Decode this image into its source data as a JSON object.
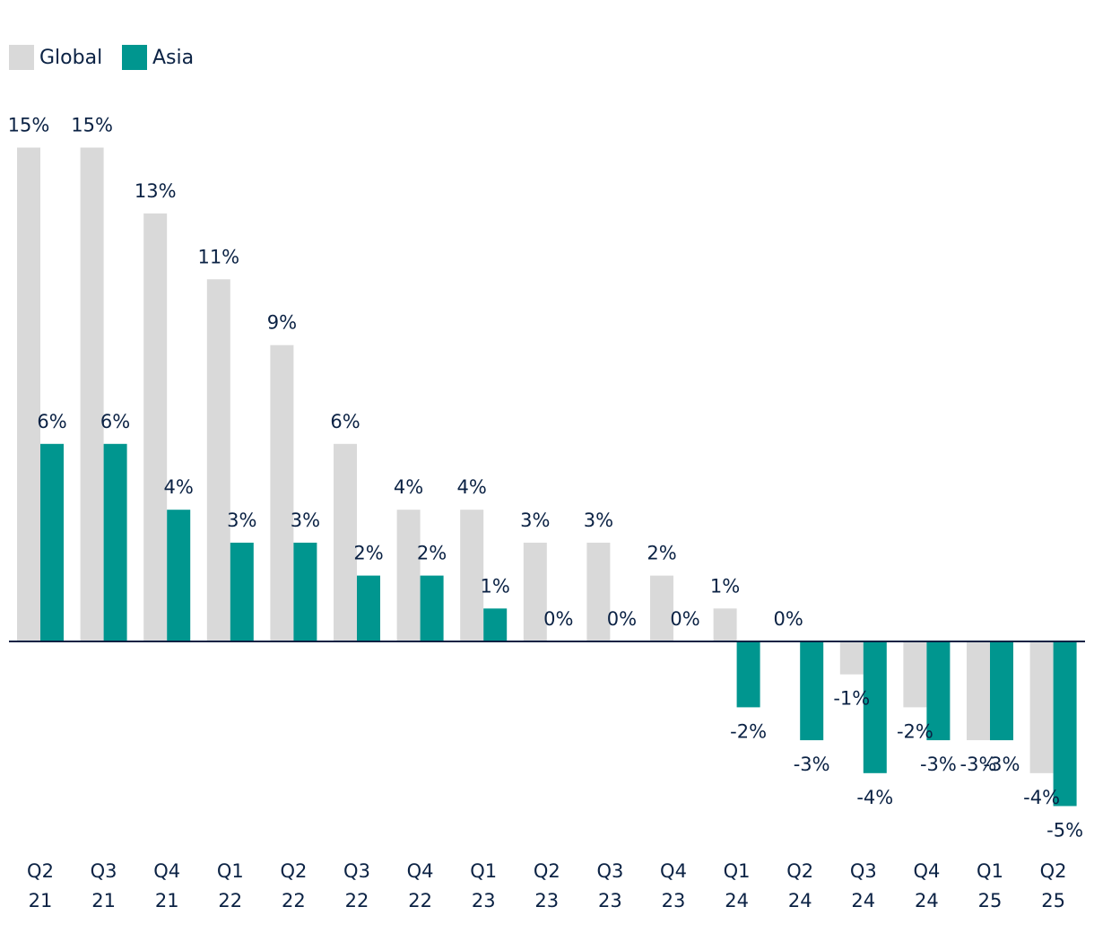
{
  "chart_data": {
    "type": "bar",
    "title": "",
    "xlabel": "",
    "ylabel": "",
    "ylim": [
      -5,
      15
    ],
    "grid": false,
    "legend_position": "top-left",
    "categories": [
      [
        "Q2",
        "21"
      ],
      [
        "Q3",
        "21"
      ],
      [
        "Q4",
        "21"
      ],
      [
        "Q1",
        "22"
      ],
      [
        "Q2",
        "22"
      ],
      [
        "Q3",
        "22"
      ],
      [
        "Q4",
        "22"
      ],
      [
        "Q1",
        "23"
      ],
      [
        "Q2",
        "23"
      ],
      [
        "Q3",
        "23"
      ],
      [
        "Q4",
        "23"
      ],
      [
        "Q1",
        "24"
      ],
      [
        "Q2",
        "24"
      ],
      [
        "Q3",
        "24"
      ],
      [
        "Q4",
        "24"
      ],
      [
        "Q1",
        "25"
      ],
      [
        "Q2",
        "25"
      ]
    ],
    "series": [
      {
        "name": "Global",
        "color": "#d9d9d9",
        "values": [
          15,
          15,
          13,
          11,
          9,
          6,
          4,
          4,
          3,
          3,
          2,
          1,
          0,
          -1,
          -2,
          -3,
          -4
        ],
        "labels": [
          "15%",
          "15%",
          "13%",
          "11%",
          "9%",
          "6%",
          "4%",
          "4%",
          "3%",
          "3%",
          "2%",
          "1%",
          "0%",
          "-1%",
          "-2%",
          "-3%",
          "-4%"
        ]
      },
      {
        "name": "Asia",
        "color": "#00968f",
        "values": [
          6,
          6,
          4,
          3,
          3,
          2,
          2,
          1,
          0,
          0,
          0,
          -2,
          -3,
          -4,
          -3,
          -3,
          -5
        ],
        "labels": [
          "6%",
          "6%",
          "4%",
          "3%",
          "3%",
          "2%",
          "2%",
          "1%",
          "0%",
          "0%",
          "0%",
          "-2%",
          "-3%",
          "-4%",
          "-3%",
          "-3%",
          "-5%"
        ]
      }
    ],
    "axis_color": "#0b2244"
  }
}
